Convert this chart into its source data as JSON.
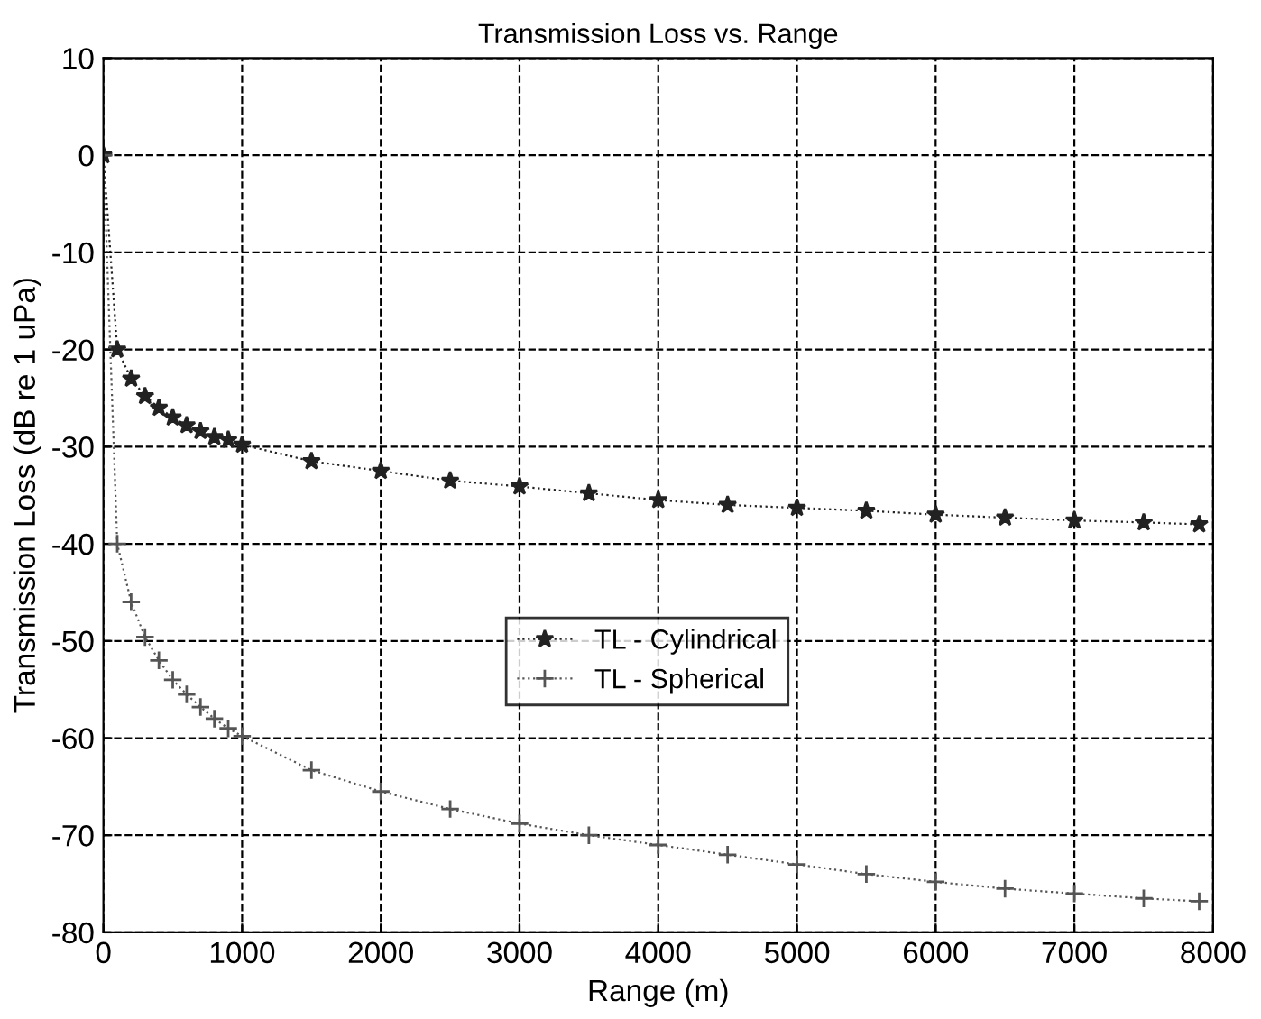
{
  "chart_data": {
    "type": "line",
    "title": "Transmission Loss vs. Range",
    "xlabel": "Range (m)",
    "ylabel": "Transmission Loss (dB re 1 uPa)",
    "xlim": [
      0,
      8000
    ],
    "xticks": [
      0,
      1000,
      2000,
      3000,
      4000,
      5000,
      6000,
      7000,
      8000
    ],
    "ylim": [
      -80,
      10
    ],
    "yticks": [
      -80,
      -70,
      -60,
      -50,
      -40,
      -30,
      -20,
      -10,
      0,
      10
    ],
    "grid": true,
    "legend": "center",
    "line_style": "dotted",
    "x": [
      0,
      100,
      200,
      300,
      400,
      500,
      600,
      700,
      800,
      900,
      1000,
      1500,
      2000,
      2500,
      3000,
      3500,
      4000,
      4500,
      5000,
      5500,
      6000,
      6500,
      7000,
      7500,
      7900
    ],
    "series": [
      {
        "name": "TL - Cylindrical",
        "color": "#222222",
        "marker": "star",
        "values": [
          0,
          -20,
          -23,
          -24.8,
          -26,
          -27,
          -27.8,
          -28.4,
          -29,
          -29.3,
          -29.8,
          -31.5,
          -32.5,
          -33.5,
          -34.1,
          -34.8,
          -35.5,
          -36,
          -36.3,
          -36.6,
          -37,
          -37.3,
          -37.6,
          -37.8,
          -38
        ]
      },
      {
        "name": "TL - Spherical",
        "color": "#555555",
        "marker": "cross",
        "values": [
          0,
          -40,
          -46,
          -49.6,
          -52,
          -54,
          -55.5,
          -56.8,
          -58,
          -59,
          -59.8,
          -63.3,
          -65.5,
          -67.3,
          -68.8,
          -70,
          -71,
          -72,
          -73,
          -74,
          -74.8,
          -75.5,
          -76,
          -76.5,
          -76.8
        ]
      }
    ]
  }
}
